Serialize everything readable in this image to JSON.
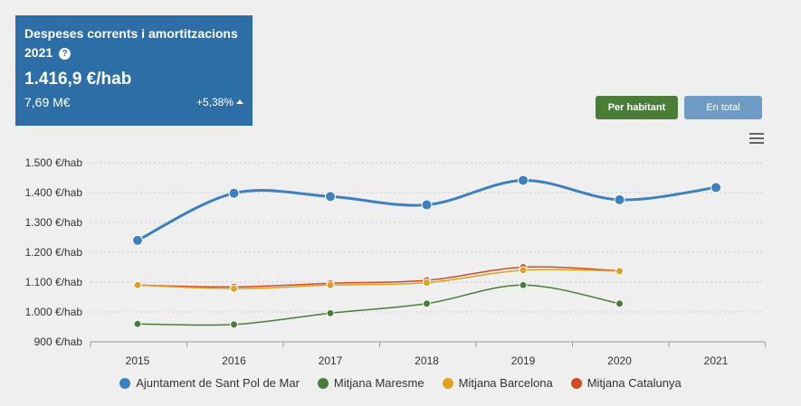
{
  "card": {
    "title": "Despeses corrents i amortitzacions",
    "year": "2021",
    "help_icon": "?",
    "value": "1.416,9 €/hab",
    "total": "7,69 M€",
    "change": "+5,38%"
  },
  "toggle": {
    "per_habitant": "Per habitant",
    "en_total": "En total"
  },
  "menu_icon": "hamburger-menu-icon",
  "chart_data": {
    "type": "line",
    "x": [
      "2015",
      "2016",
      "2017",
      "2018",
      "2019",
      "2020",
      "2021"
    ],
    "ylim": [
      900,
      1500
    ],
    "yticks": [
      {
        "value": 900,
        "label": "900 €/hab"
      },
      {
        "value": 1000,
        "label": "1.000 €/hab"
      },
      {
        "value": 1100,
        "label": "1.100 €/hab"
      },
      {
        "value": 1200,
        "label": "1.200 €/hab"
      },
      {
        "value": 1300,
        "label": "1.300 €/hab"
      },
      {
        "value": 1400,
        "label": "1.400 €/hab"
      },
      {
        "value": 1500,
        "label": "1.500 €/hab"
      }
    ],
    "grid": true,
    "legend": "bottom",
    "series": [
      {
        "name": "Ajuntament de Sant Pol de Mar",
        "color": "#3d80c0",
        "values": [
          1240,
          1398,
          1387,
          1359,
          1441,
          1376,
          1416.9
        ]
      },
      {
        "name": "Mitjana Maresme",
        "color": "#4a7d38",
        "values": [
          960,
          958,
          996,
          1028,
          1090,
          1028,
          null
        ]
      },
      {
        "name": "Mitjana Barcelona",
        "color": "#e0a020",
        "values": [
          1090,
          1078,
          1090,
          1098,
          1140,
          1137,
          null
        ]
      },
      {
        "name": "Mitjana Catalunya",
        "color": "#d04a2a",
        "values": [
          1090,
          1084,
          1096,
          1106,
          1150,
          1138,
          null
        ]
      }
    ]
  }
}
